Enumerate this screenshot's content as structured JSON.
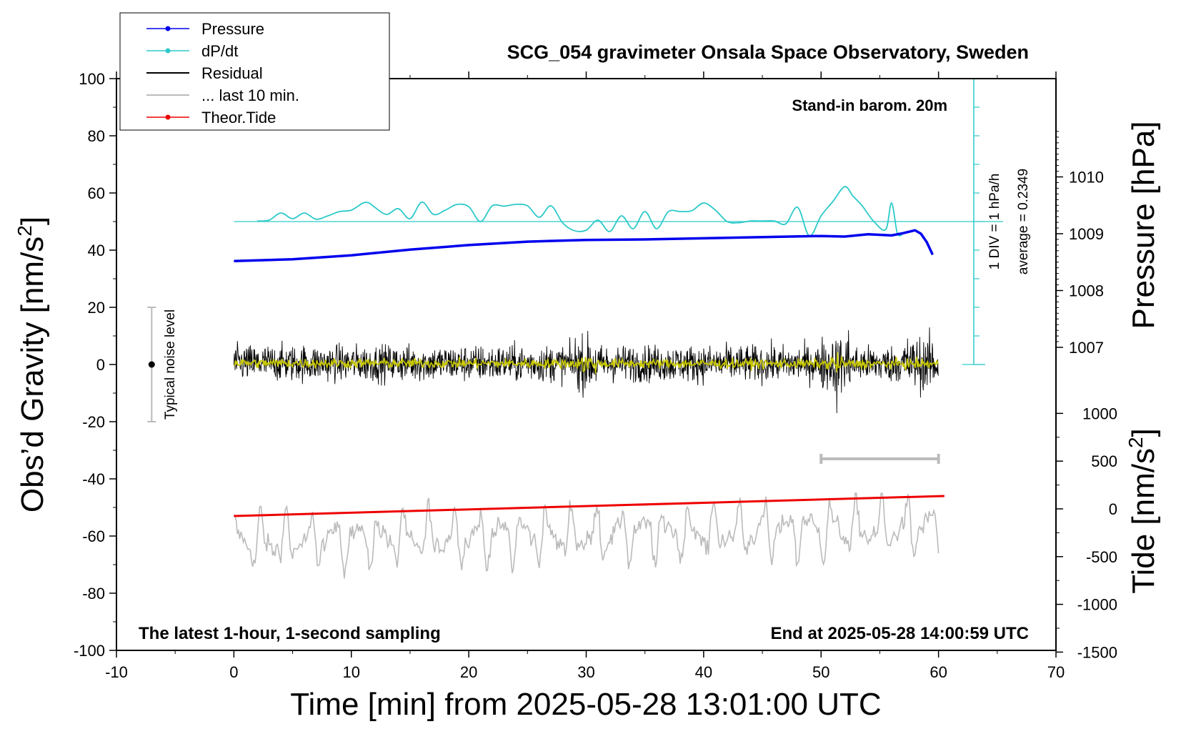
{
  "chart_data": {
    "type": "line",
    "title": "SCG_054 gravimeter Onsala Space Observatory, Sweden",
    "xlabel": "Time [min] from 2025-05-28 13:01:00 UTC",
    "ylabel_left": "Obs’d Gravity [nm/s",
    "ylabel_left_sup": "2",
    "ylabel_left_close": "]",
    "ylabel_right_pressure": "Pressure [hPa]",
    "ylabel_right_tide": "Tide [nm/s",
    "ylabel_right_tide_sup": "2",
    "ylabel_right_tide_close": "]",
    "xlim": [
      -10,
      70
    ],
    "ylim": [
      -100,
      100
    ],
    "pressure_axis_range": [
      1007,
      1010
    ],
    "tide_axis_range": [
      -1500,
      1000
    ],
    "x_ticks": [
      "-10",
      "0",
      "10",
      "20",
      "30",
      "40",
      "50",
      "60",
      "70"
    ],
    "y_ticks": [
      "-100",
      "-80",
      "-60",
      "-40",
      "-20",
      "0",
      "20",
      "40",
      "60",
      "80",
      "100"
    ],
    "pressure_ticks": [
      "1007",
      "1008",
      "1009",
      "1010"
    ],
    "tide_ticks": [
      "-1500",
      "-1000",
      "-500",
      "0",
      "500",
      "1000"
    ],
    "annotations": {
      "barometer": "Stand-in barom. 20m",
      "bottom_left": "The latest 1-hour, 1-second sampling",
      "bottom_right": "End at 2025-05-28 14:00:59 UTC",
      "div": "1 DIV = 1 hPa/h",
      "average": "average = 0.2349",
      "noise": "Typical noise level"
    },
    "legend_position": "top-left",
    "legend": [
      "Pressure",
      "dP/dt",
      "Residual",
      "... last 10 min.",
      "Theor.Tide"
    ],
    "colors": {
      "pressure": "#0000ee",
      "dpdt": "#2ec9c9",
      "residual": "#000000",
      "last10": "#c8c800",
      "tide": "#ee0000",
      "gravity_raw": "#bbbbbb"
    },
    "series": [
      {
        "name": "Pressure",
        "unit": "hPa",
        "x": [
          0,
          5,
          10,
          15,
          20,
          25,
          30,
          35,
          40,
          45,
          50,
          52,
          54,
          56,
          57,
          58,
          58.5,
          59,
          59.5
        ],
        "values": [
          1008.52,
          1008.55,
          1008.62,
          1008.72,
          1008.8,
          1008.86,
          1008.89,
          1008.9,
          1008.92,
          1008.94,
          1008.96,
          1008.95,
          1008.99,
          1008.97,
          1009.01,
          1009.06,
          1009.0,
          1008.85,
          1008.63
        ]
      },
      {
        "name": "dP/dt",
        "unit": "nm/s2 (1 DIV = 1 hPa/h)",
        "x": [
          2,
          3,
          4,
          5,
          6,
          7,
          8,
          9,
          10,
          11,
          11.5,
          12,
          13,
          14,
          15,
          16,
          17,
          18,
          19,
          20,
          21,
          22,
          23,
          24,
          25,
          26,
          27,
          28,
          29,
          30,
          31,
          32,
          33,
          34,
          35,
          36,
          37,
          38,
          39,
          40,
          41,
          42,
          43,
          44,
          45,
          46,
          47,
          48,
          49,
          50,
          51,
          52,
          52.7,
          53.5,
          54.5,
          55.5,
          56,
          56.5,
          57
        ],
        "values": [
          50.2,
          50.5,
          53,
          51,
          53,
          50.8,
          52,
          53.5,
          54,
          56.5,
          56.5,
          55,
          52.5,
          54.5,
          51,
          56.8,
          52.5,
          54,
          56,
          55.2,
          50,
          55.5,
          55.4,
          56,
          55.5,
          51.5,
          55.5,
          49.5,
          46.8,
          47,
          50.5,
          46.5,
          52,
          47.5,
          53.5,
          47.5,
          53.5,
          53.5,
          53.8,
          56.5,
          54,
          50,
          49.6,
          50.2,
          50.2,
          50.2,
          49.2,
          55,
          45,
          52,
          57,
          62.2,
          59,
          55.5,
          50,
          47.2,
          56.5,
          45.8,
          45.8
        ]
      },
      {
        "name": "Residual",
        "unit": "nm/s2",
        "x": [
          0,
          60
        ],
        "values": [
          0.5,
          0.2
        ],
        "noise_amplitude": 4.5,
        "extremes": [
          12,
          -17
        ]
      },
      {
        "name": "... last 10 min.",
        "unit": "nm/s2",
        "x": [
          0,
          60
        ],
        "values": [
          0.5,
          0.2
        ],
        "noise_amplitude": 1.2
      },
      {
        "name": "Theor.Tide",
        "unit": "nm/s2",
        "x": [
          0,
          60.5
        ],
        "values": [
          -53,
          -46
        ]
      },
      {
        "name": "Obs'd Gravity",
        "unit": "nm/s2",
        "x": [
          0,
          60
        ],
        "values": [
          -62,
          -57
        ],
        "oscillation_range": [
          -78,
          -45
        ]
      }
    ],
    "noise_bar": {
      "x": -7,
      "range": [
        -20,
        20
      ],
      "center": 0
    },
    "window_bar": {
      "x": [
        50,
        60
      ],
      "y": -33
    },
    "div_scale": {
      "x": 63,
      "range": [
        0,
        100
      ],
      "reference": 50
    }
  }
}
